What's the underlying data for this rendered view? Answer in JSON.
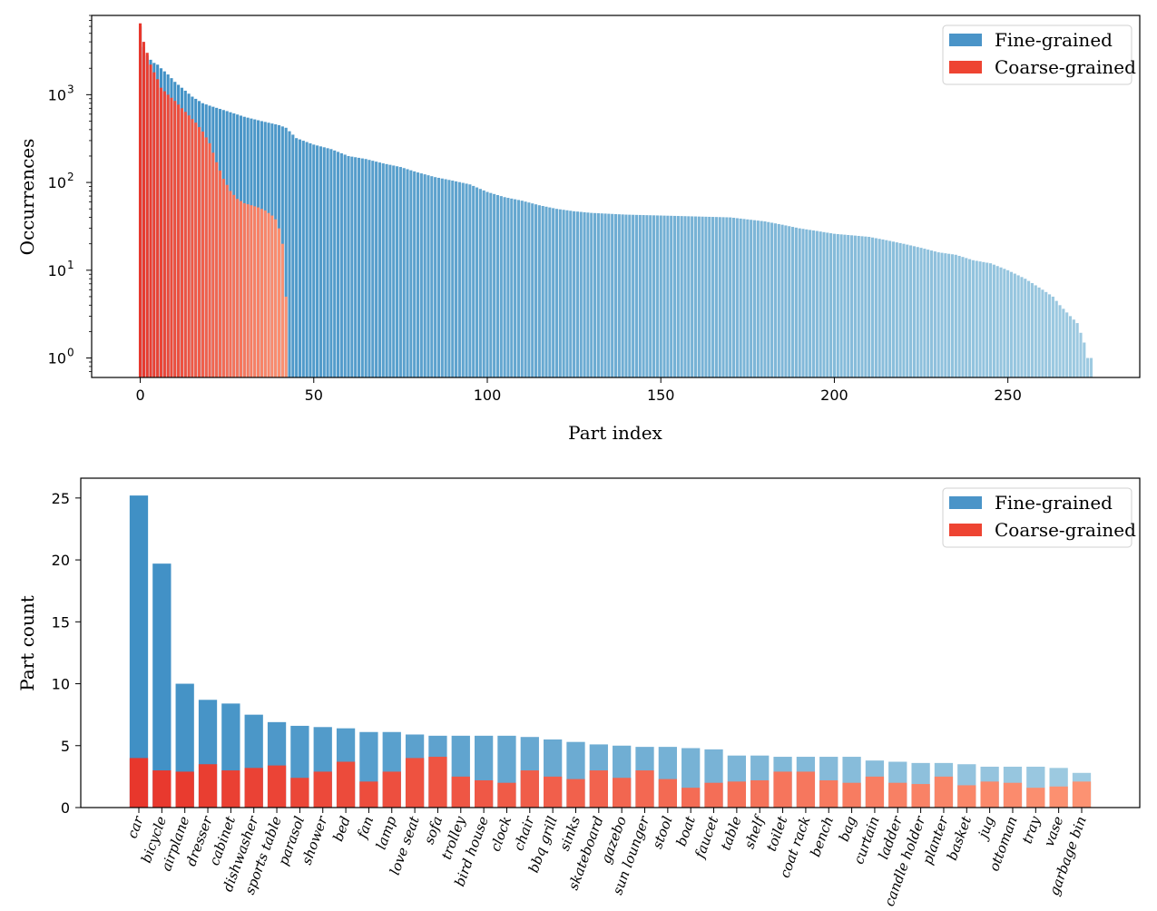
{
  "chart_data": [
    {
      "type": "bar",
      "xlabel": "Part index",
      "ylabel": "Occurrences",
      "yscale": "log",
      "ylim": [
        0.6,
        8000
      ],
      "xlim": [
        -14,
        288
      ],
      "xticks": [
        0,
        50,
        100,
        150,
        200,
        250
      ],
      "yticks": [
        {
          "value": 1,
          "base": "10",
          "exp": "0"
        },
        {
          "value": 10,
          "base": "10",
          "exp": "1"
        },
        {
          "value": 100,
          "base": "10",
          "exp": "2"
        },
        {
          "value": 1000,
          "base": "10",
          "exp": "3"
        }
      ],
      "legend": {
        "position": "top-right",
        "entries": [
          "Fine-grained",
          "Coarse-grained"
        ]
      },
      "grid": false,
      "colors": {
        "fine_start": "#4090c5",
        "fine_end": "#9ecae1",
        "coarse_start": "#e8372c",
        "coarse_end": "#fc9272"
      },
      "series": [
        {
          "name": "Fine-grained",
          "anchors": [
            [
              0,
              6000
            ],
            [
              1,
              3500
            ],
            [
              2,
              2800
            ],
            [
              3,
              2500
            ],
            [
              4,
              2300
            ],
            [
              5,
              2200
            ],
            [
              6,
              2000
            ],
            [
              8,
              1700
            ],
            [
              10,
              1400
            ],
            [
              12,
              1200
            ],
            [
              15,
              950
            ],
            [
              18,
              800
            ],
            [
              20,
              750
            ],
            [
              25,
              650
            ],
            [
              30,
              560
            ],
            [
              35,
              500
            ],
            [
              40,
              450
            ],
            [
              42,
              420
            ],
            [
              45,
              320
            ],
            [
              50,
              270
            ],
            [
              55,
              240
            ],
            [
              60,
              200
            ],
            [
              65,
              185
            ],
            [
              70,
              165
            ],
            [
              75,
              150
            ],
            [
              80,
              130
            ],
            [
              85,
              115
            ],
            [
              90,
              105
            ],
            [
              95,
              95
            ],
            [
              100,
              78
            ],
            [
              105,
              68
            ],
            [
              110,
              62
            ],
            [
              115,
              55
            ],
            [
              120,
              50
            ],
            [
              125,
              47
            ],
            [
              130,
              45
            ],
            [
              140,
              43
            ],
            [
              150,
              42
            ],
            [
              160,
              41
            ],
            [
              170,
              40
            ],
            [
              180,
              36
            ],
            [
              185,
              33
            ],
            [
              190,
              30
            ],
            [
              195,
              28
            ],
            [
              200,
              26
            ],
            [
              205,
              25
            ],
            [
              210,
              24
            ],
            [
              215,
              22
            ],
            [
              220,
              20
            ],
            [
              225,
              18
            ],
            [
              230,
              16
            ],
            [
              235,
              15
            ],
            [
              240,
              13
            ],
            [
              245,
              12
            ],
            [
              250,
              10
            ],
            [
              255,
              8
            ],
            [
              260,
              6
            ],
            [
              263,
              5
            ],
            [
              265,
              4
            ],
            [
              268,
              3
            ],
            [
              270,
              2.5
            ],
            [
              272,
              1.5
            ],
            [
              273,
              1
            ],
            [
              274,
              1
            ]
          ]
        },
        {
          "name": "Coarse-grained",
          "anchors": [
            [
              0,
              6500
            ],
            [
              1,
              4000
            ],
            [
              2,
              3000
            ],
            [
              3,
              2200
            ],
            [
              4,
              1800
            ],
            [
              5,
              1500
            ],
            [
              6,
              1200
            ],
            [
              8,
              1000
            ],
            [
              10,
              850
            ],
            [
              12,
              700
            ],
            [
              14,
              580
            ],
            [
              16,
              480
            ],
            [
              18,
              380
            ],
            [
              20,
              280
            ],
            [
              22,
              170
            ],
            [
              24,
              110
            ],
            [
              26,
              80
            ],
            [
              28,
              65
            ],
            [
              30,
              58
            ],
            [
              32,
              55
            ],
            [
              34,
              52
            ],
            [
              36,
              48
            ],
            [
              38,
              42
            ],
            [
              39,
              38
            ],
            [
              40,
              30
            ],
            [
              41,
              20
            ],
            [
              42,
              5
            ]
          ]
        }
      ]
    },
    {
      "type": "bar",
      "stacked": "overlay",
      "ylabel": "Part count",
      "ylim": [
        0,
        26.6
      ],
      "yticks": [
        0,
        5,
        10,
        15,
        20,
        25
      ],
      "legend": {
        "position": "top-right",
        "entries": [
          "Fine-grained",
          "Coarse-grained"
        ]
      },
      "grid": false,
      "colors": {
        "fine_start": "#4090c5",
        "fine_end": "#9ecae1",
        "coarse_start": "#e8372c",
        "coarse_end": "#fc9272"
      },
      "categories": [
        "car",
        "bicycle",
        "airplane",
        "dresser",
        "cabinet",
        "dishwasher",
        "sports table",
        "parasol",
        "shower",
        "bed",
        "fan",
        "lamp",
        "love seat",
        "sofa",
        "trolley",
        "bird house",
        "clock",
        "chair",
        "bbq grill",
        "sinks",
        "skateboard",
        "gazebo",
        "sun lounger",
        "stool",
        "boat",
        "faucet",
        "table",
        "shelf",
        "toilet",
        "coat rack",
        "bench",
        "bag",
        "curtain",
        "ladder",
        "candle holder",
        "planter",
        "basket",
        "jug",
        "ottoman",
        "tray",
        "vase",
        "garbage bin"
      ],
      "series": [
        {
          "name": "Fine-grained",
          "values": [
            25.2,
            19.7,
            10.0,
            8.7,
            8.4,
            7.5,
            6.9,
            6.6,
            6.5,
            6.4,
            6.1,
            6.1,
            5.9,
            5.8,
            5.8,
            5.8,
            5.8,
            5.7,
            5.5,
            5.3,
            5.1,
            5.0,
            4.9,
            4.9,
            4.8,
            4.7,
            4.2,
            4.2,
            4.1,
            4.1,
            4.1,
            4.1,
            3.8,
            3.7,
            3.6,
            3.6,
            3.5,
            3.3,
            3.3,
            3.3,
            3.2,
            2.8
          ]
        },
        {
          "name": "Coarse-grained",
          "values": [
            4.0,
            3.0,
            2.9,
            3.5,
            3.0,
            3.2,
            3.4,
            2.4,
            2.9,
            3.7,
            2.1,
            2.9,
            4.0,
            4.1,
            2.5,
            2.2,
            2.0,
            3.0,
            2.5,
            2.3,
            3.0,
            2.4,
            3.0,
            2.3,
            1.6,
            2.0,
            2.1,
            2.2,
            2.9,
            2.9,
            2.2,
            2.0,
            2.5,
            2.0,
            1.9,
            2.5,
            1.8,
            2.1,
            2.0,
            1.6,
            1.7,
            2.1
          ]
        }
      ]
    }
  ]
}
